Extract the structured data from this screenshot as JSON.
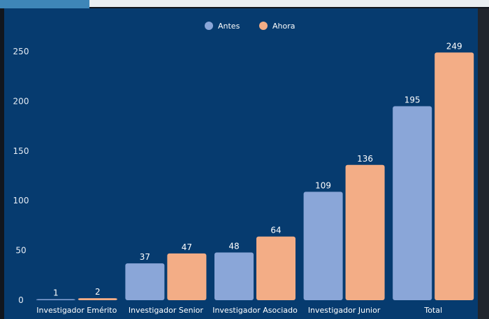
{
  "colors": {
    "panel": "#063b6f",
    "antes": "#8aa6d8",
    "ahora": "#f3ad86",
    "grid": "#2d5a86"
  },
  "legend": {
    "antes": "Antes",
    "ahora": "Ahora"
  },
  "chart_data": {
    "type": "bar",
    "categories": [
      "Investigador Emérito",
      "Investigador Senior",
      "Investigador Asociado",
      "Investigador Junior",
      "Total"
    ],
    "series": [
      {
        "name": "Antes",
        "values": [
          1,
          37,
          48,
          109,
          195
        ]
      },
      {
        "name": "Ahora",
        "values": [
          2,
          47,
          64,
          136,
          249
        ]
      }
    ],
    "ylim": [
      0,
      250
    ],
    "yticks": [
      0,
      50,
      100,
      150,
      200,
      250
    ],
    "grid": false,
    "legend_position": "top-center",
    "title": "",
    "xlabel": "",
    "ylabel": ""
  }
}
